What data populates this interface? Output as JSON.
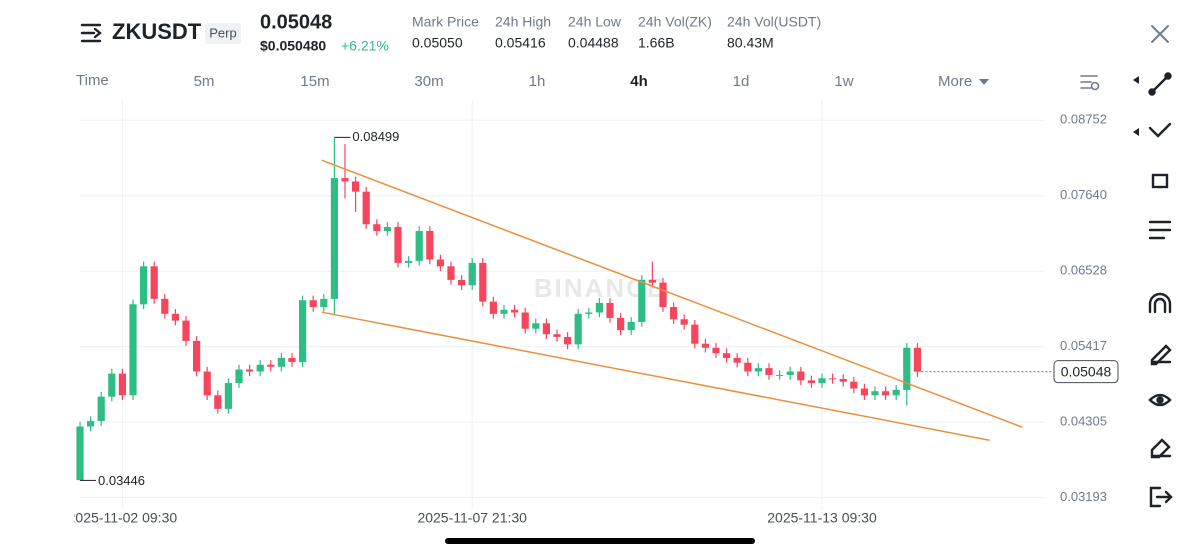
{
  "header": {
    "symbol": "ZKUSDT",
    "badge": "Perp",
    "price": "0.05048",
    "usd_price": "$0.050480",
    "change": "+6.21%",
    "stats": [
      {
        "label": "Mark Price",
        "value": "0.05050"
      },
      {
        "label": "24h High",
        "value": "0.05416"
      },
      {
        "label": "24h Low",
        "value": "0.04488"
      },
      {
        "label": "24h Vol(ZK)",
        "value": "1.66B"
      },
      {
        "label": "24h Vol(USDT)",
        "value": "80.43M"
      }
    ]
  },
  "tabs": [
    "Time",
    "5m",
    "15m",
    "30m",
    "1h",
    "4h",
    "1d",
    "1w",
    "More"
  ],
  "chart_data": {
    "type": "candlestick",
    "watermark": "BINANCE",
    "up_color": "#2ebd85",
    "down_color": "#f6465d",
    "categories": [
      null,
      null,
      null,
      null,
      "2025-11-02 09:30",
      null,
      null,
      null,
      null,
      null,
      null,
      null,
      null,
      null,
      null,
      null,
      null,
      null,
      null,
      null,
      null,
      null,
      null,
      null,
      null,
      null,
      null,
      null,
      null,
      null,
      null,
      null,
      null,
      null,
      null,
      null,
      null,
      "2025-11-07 21:30",
      null,
      null,
      null,
      null,
      null,
      null,
      null,
      null,
      null,
      null,
      null,
      null,
      null,
      null,
      null,
      null,
      null,
      null,
      null,
      null,
      null,
      null,
      null,
      null,
      null,
      null,
      null,
      null,
      null,
      null,
      null,
      null,
      "2025-11-13 09:30",
      null,
      null,
      null,
      null,
      null,
      null,
      null,
      null,
      null
    ],
    "open": [
      0.0345,
      0.0424,
      0.0432,
      0.0468,
      0.0502,
      0.047,
      0.0604,
      0.066,
      0.0612,
      0.059,
      0.058,
      0.055,
      0.0505,
      0.047,
      0.045,
      0.0488,
      0.0508,
      0.0505,
      0.0515,
      0.0512,
      0.0525,
      0.0519,
      0.061,
      0.06,
      0.0612,
      0.079,
      0.0785,
      0.077,
      0.0722,
      0.0712,
      0.0718,
      0.0665,
      0.0668,
      0.0712,
      0.067,
      0.066,
      0.064,
      0.0632,
      0.0665,
      0.0608,
      0.059,
      0.0596,
      0.0592,
      0.0568,
      0.0576,
      0.056,
      0.0556,
      0.0545,
      0.059,
      0.0592,
      0.0606,
      0.0584,
      0.0566,
      0.0578,
      0.064,
      0.0636,
      0.06,
      0.0582,
      0.0574,
      0.0546,
      0.054,
      0.0532,
      0.0525,
      0.0518,
      0.0505,
      0.051,
      0.05,
      0.05,
      0.0505,
      0.0492,
      0.0488,
      0.0495,
      0.0494,
      0.049,
      0.048,
      0.047,
      0.0476,
      0.047,
      0.0478,
      0.054
    ],
    "high": [
      0.0431,
      0.0439,
      0.0475,
      0.0509,
      0.0509,
      0.0611,
      0.0667,
      0.0667,
      0.0619,
      0.0597,
      0.0587,
      0.0557,
      0.0512,
      0.0477,
      0.0495,
      0.0515,
      0.0515,
      0.0522,
      0.0522,
      0.0532,
      0.0532,
      0.0617,
      0.0617,
      0.0619,
      0.08499,
      0.084,
      0.0792,
      0.0777,
      0.0729,
      0.0725,
      0.0725,
      0.0675,
      0.0719,
      0.0719,
      0.0677,
      0.0667,
      0.0647,
      0.0672,
      0.0672,
      0.0615,
      0.0603,
      0.0603,
      0.0599,
      0.0583,
      0.0583,
      0.0567,
      0.0563,
      0.0597,
      0.0599,
      0.0613,
      0.0613,
      0.0591,
      0.0585,
      0.0647,
      0.0667,
      0.0643,
      0.0607,
      0.0589,
      0.0581,
      0.0553,
      0.0547,
      0.0539,
      0.0532,
      0.0525,
      0.0517,
      0.0517,
      0.0507,
      0.0512,
      0.0512,
      0.0499,
      0.0502,
      0.0502,
      0.0501,
      0.0497,
      0.0487,
      0.0483,
      0.0483,
      0.0485,
      0.0547,
      0.0547
    ],
    "low": [
      0.03446,
      0.0417,
      0.0425,
      0.0461,
      0.0463,
      0.0463,
      0.0597,
      0.0605,
      0.0583,
      0.0573,
      0.0543,
      0.0498,
      0.0463,
      0.0443,
      0.0443,
      0.0481,
      0.0498,
      0.0498,
      0.0505,
      0.0505,
      0.0512,
      0.0512,
      0.0593,
      0.0593,
      0.059,
      0.076,
      0.074,
      0.0715,
      0.0705,
      0.0705,
      0.0658,
      0.0658,
      0.0661,
      0.0663,
      0.0653,
      0.0633,
      0.0625,
      0.0625,
      0.0601,
      0.0583,
      0.0583,
      0.0585,
      0.0561,
      0.0561,
      0.0553,
      0.0549,
      0.0538,
      0.0538,
      0.0583,
      0.0585,
      0.0577,
      0.0559,
      0.0559,
      0.0571,
      0.0629,
      0.0593,
      0.0575,
      0.0567,
      0.0539,
      0.0533,
      0.0525,
      0.0518,
      0.0511,
      0.0498,
      0.0498,
      0.0493,
      0.0493,
      0.0493,
      0.0485,
      0.0481,
      0.0481,
      0.0487,
      0.0483,
      0.0473,
      0.0463,
      0.0463,
      0.0463,
      0.0463,
      0.0455,
      0.0497
    ],
    "close": [
      0.0424,
      0.0432,
      0.0468,
      0.0502,
      0.047,
      0.0604,
      0.066,
      0.0612,
      0.059,
      0.058,
      0.055,
      0.0505,
      0.047,
      0.045,
      0.0488,
      0.0508,
      0.0505,
      0.0515,
      0.0512,
      0.0525,
      0.0519,
      0.061,
      0.06,
      0.0612,
      0.079,
      0.0785,
      0.077,
      0.0722,
      0.0712,
      0.0718,
      0.0665,
      0.0668,
      0.0712,
      0.067,
      0.066,
      0.064,
      0.0632,
      0.0665,
      0.0608,
      0.059,
      0.0596,
      0.0592,
      0.0568,
      0.0576,
      0.056,
      0.0556,
      0.0545,
      0.059,
      0.0592,
      0.0606,
      0.0584,
      0.0566,
      0.0578,
      0.064,
      0.0636,
      0.06,
      0.0582,
      0.0574,
      0.0546,
      0.054,
      0.0532,
      0.0525,
      0.0518,
      0.0505,
      0.051,
      0.05,
      0.05,
      0.0505,
      0.0492,
      0.0488,
      0.0495,
      0.0494,
      0.049,
      0.048,
      0.047,
      0.0476,
      0.047,
      0.0478,
      0.054,
      0.05048
    ],
    "high_label": "0.08499",
    "low_label": "0.03446",
    "last_price_label": "0.05048",
    "trendlines": [
      {
        "color": "#e8903f",
        "x": [
          22.8,
          88.9
        ],
        "y": [
          0.08163,
          0.0423
        ]
      },
      {
        "color": "#e8903f",
        "x": [
          22.8,
          85.8
        ],
        "y": [
          0.05924,
          0.04038
        ]
      }
    ],
    "ylim": [
      0.0301,
      0.0905
    ],
    "yticks": [
      0.08752,
      {
        "value": 0.0764,
        "label": "0.07640"
      },
      0.06528,
      0.05417,
      0.04305,
      0.03193
    ],
    "grid": true
  }
}
